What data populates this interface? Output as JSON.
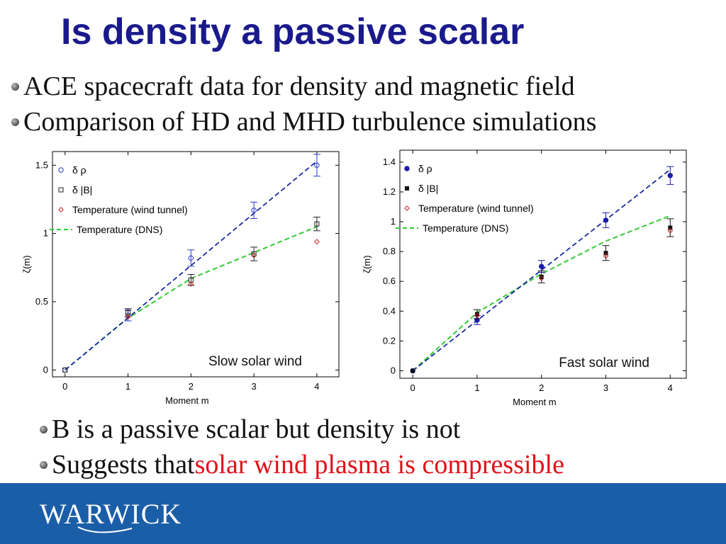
{
  "slide": {
    "title": "Is density a passive scalar",
    "bullets_top": [
      "ACE spacecraft data for density and magnetic field",
      "Comparison of HD and MHD turbulence simulations"
    ],
    "bullet_b_passive": "B is a passive scalar but density is not",
    "bullet_suggests_prefix": "Suggests that ",
    "bullet_suggests_highlight": "solar wind plasma is compressible",
    "highlight_color": "#e0101a",
    "footer_logo": "WARWICK",
    "footer_color": "#1b5ea8"
  },
  "chart_data": [
    {
      "type": "scatter",
      "annotation": "Slow solar wind",
      "xlabel": "Moment m",
      "ylabel": "ζ(m)",
      "xlim": [
        -0.2,
        4.35
      ],
      "ylim": [
        -0.05,
        1.6
      ],
      "xticks": [
        "0",
        "1",
        "2",
        "3",
        "4"
      ],
      "yticks": [
        "0",
        "0.5",
        "1",
        "1.5"
      ],
      "ytick_values": [
        0,
        0.5,
        1,
        1.5
      ],
      "legend_position": "top-left",
      "series": [
        {
          "name": "δ ρ",
          "marker": "open-circle",
          "color": "#2a3acb",
          "x": [
            0,
            1,
            2,
            3,
            4
          ],
          "y": [
            0,
            0.4,
            0.82,
            1.17,
            1.5
          ],
          "err": [
            0,
            0.04,
            0.06,
            0.06,
            0.08
          ]
        },
        {
          "name": "δ |B|",
          "marker": "open-square",
          "color": "#222222",
          "x": [
            0,
            1,
            2,
            3,
            4
          ],
          "y": [
            0,
            0.42,
            0.66,
            0.85,
            1.07
          ],
          "err": [
            0,
            0.03,
            0.04,
            0.05,
            0.05
          ]
        },
        {
          "name": "Temperature (wind tunnel)",
          "marker": "open-diamond",
          "color": "#cc2222",
          "x": [
            1,
            2,
            3,
            4
          ],
          "y": [
            0.39,
            0.63,
            0.84,
            0.94
          ],
          "err": [
            0,
            0,
            0,
            0
          ]
        },
        {
          "name": "Temperature (DNS)",
          "marker": "dashed-line",
          "color": "#33cc33",
          "x": [
            0,
            1,
            2,
            3,
            4
          ],
          "y": [
            0,
            0.38,
            0.67,
            0.86,
            1.05
          ]
        }
      ],
      "fit_line": {
        "color": "#1a2aa0",
        "x": [
          0,
          4
        ],
        "y": [
          0,
          1.53
        ]
      }
    },
    {
      "type": "scatter",
      "annotation": "Fast solar wind",
      "xlabel": "Moment m",
      "ylabel": "ζ(m)",
      "xlim": [
        -0.2,
        4.25
      ],
      "ylim": [
        -0.05,
        1.48
      ],
      "xticks": [
        "0",
        "1",
        "2",
        "3",
        "4"
      ],
      "yticks": [
        "0",
        "0.2",
        "0.4",
        "0.6",
        "0.8",
        "1",
        "1.2",
        "1.4"
      ],
      "ytick_values": [
        0,
        0.2,
        0.4,
        0.6,
        0.8,
        1,
        1.2,
        1.4
      ],
      "legend_position": "top-left",
      "series": [
        {
          "name": "δ ρ",
          "marker": "filled-circle",
          "color": "#1a1ab0",
          "x": [
            0,
            1,
            2,
            3,
            4
          ],
          "y": [
            0,
            0.34,
            0.7,
            1.01,
            1.31
          ],
          "err": [
            0,
            0.03,
            0.04,
            0.05,
            0.06
          ]
        },
        {
          "name": "δ |B|",
          "marker": "filled-square",
          "color": "#111111",
          "x": [
            0,
            1,
            2,
            3,
            4
          ],
          "y": [
            0,
            0.38,
            0.63,
            0.79,
            0.96
          ],
          "err": [
            0,
            0.03,
            0.04,
            0.05,
            0.06
          ]
        },
        {
          "name": "Temperature (wind tunnel)",
          "marker": "open-diamond",
          "color": "#cc2222",
          "x": [
            1,
            2,
            3,
            4
          ],
          "y": [
            0.37,
            0.62,
            0.77,
            0.94
          ],
          "err": [
            0,
            0,
            0,
            0
          ]
        },
        {
          "name": "Temperature (DNS)",
          "marker": "dashed-line",
          "color": "#33cc33",
          "x": [
            0,
            1,
            2,
            3,
            4
          ],
          "y": [
            0,
            0.39,
            0.65,
            0.87,
            1.04
          ]
        }
      ],
      "fit_line": {
        "color": "#1a2aa0",
        "x": [
          0,
          4
        ],
        "y": [
          0,
          1.35
        ]
      }
    }
  ]
}
